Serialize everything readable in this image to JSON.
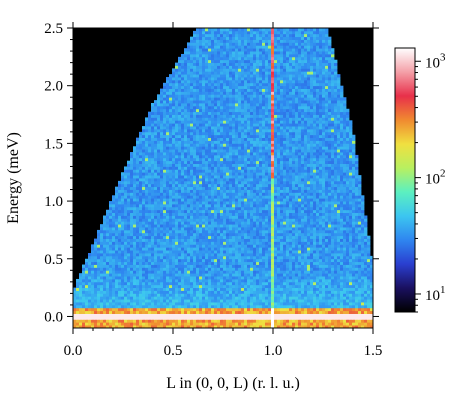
{
  "chart_data": {
    "type": "heatmap",
    "title": "",
    "xlabel": "L in (0, 0, L)  (r. l. u.)",
    "ylabel": "Energy (meV)",
    "xlim": [
      0.0,
      1.5
    ],
    "ylim": [
      -0.1,
      2.5
    ],
    "x_ticks": [
      {
        "value": 0.0,
        "label": "0.0"
      },
      {
        "value": 0.5,
        "label": "0.5"
      },
      {
        "value": 1.0,
        "label": "1.0"
      },
      {
        "value": 1.5,
        "label": "1.5"
      }
    ],
    "y_ticks": [
      {
        "value": 0.0,
        "label": "0.0"
      },
      {
        "value": 0.5,
        "label": "0.5"
      },
      {
        "value": 1.0,
        "label": "1.0"
      },
      {
        "value": 1.5,
        "label": "1.5"
      },
      {
        "value": 2.0,
        "label": "2.0"
      },
      {
        "value": 2.5,
        "label": "2.5"
      }
    ],
    "colorbar": {
      "scale": "log",
      "range": [
        7,
        1300
      ],
      "ticks": [
        {
          "value": 10,
          "base": "10",
          "exp": "1"
        },
        {
          "value": 100,
          "base": "10",
          "exp": "2"
        },
        {
          "value": 1000,
          "base": "10",
          "exp": "3"
        }
      ],
      "colors": [
        "#000000",
        "#1a1060",
        "#2a3fd0",
        "#2f86f0",
        "#3cc6f0",
        "#5cf0c0",
        "#b8f060",
        "#f0e040",
        "#f08a30",
        "#e8304a",
        "#f4a0a8",
        "#ffffff"
      ]
    },
    "features": {
      "elastic_line_energy": 0.0,
      "bragg_line_L": 1.0,
      "bright_column_L": 1.0,
      "bright_column_energy_range": [
        1.2,
        2.5
      ],
      "coverage_left_edge": [
        [
          0.0,
          0.22
        ],
        [
          0.2,
          1.05
        ],
        [
          0.4,
          1.85
        ],
        [
          0.62,
          2.5
        ]
      ],
      "coverage_right_edge": [
        [
          1.5,
          0.45
        ],
        [
          1.4,
          1.6
        ],
        [
          1.3,
          2.3
        ],
        [
          1.27,
          2.5
        ]
      ]
    }
  }
}
